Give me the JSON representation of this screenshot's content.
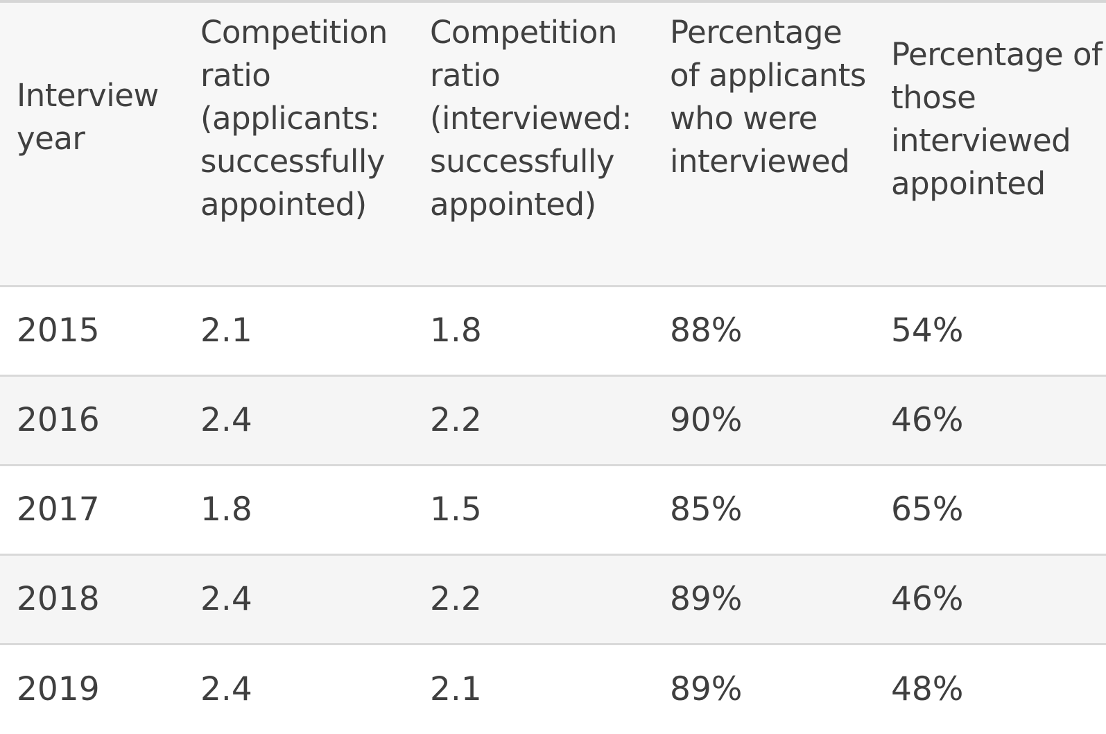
{
  "table": {
    "headers": [
      "Interview year",
      "Competition ratio (applicants: successfully appointed)",
      "Competition ratio (interviewed: successfully appointed)",
      "Percentage of applicants who were interviewed",
      "Percentage of those interviewed appointed"
    ],
    "rows": [
      [
        "2015",
        "2.1",
        "1.8",
        "88%",
        "54%"
      ],
      [
        "2016",
        "2.4",
        "2.2",
        "90%",
        "46%"
      ],
      [
        "2017",
        "1.8",
        "1.5",
        "85%",
        "65%"
      ],
      [
        "2018",
        "2.4",
        "2.2",
        "89%",
        "46%"
      ],
      [
        "2019",
        "2.4",
        "2.1",
        "89%",
        "48%"
      ]
    ]
  }
}
